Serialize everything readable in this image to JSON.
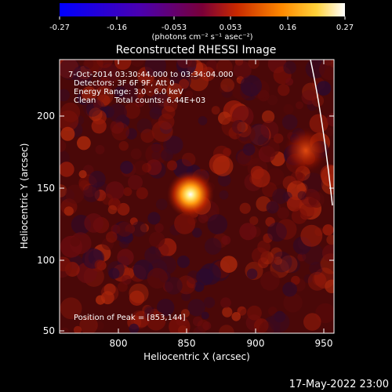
{
  "colorbar": {
    "tick_labels": [
      "-0.27",
      "-0.16",
      "-0.053",
      "0.053",
      "0.16",
      "0.27"
    ],
    "units": "(photons cm⁻² s⁻¹ asec⁻²)"
  },
  "title": "Reconstructed RHESSI Image",
  "info": {
    "time_range": "7-Oct-2014 03:30:44.000 to 03:34:04.000",
    "detectors": "Detectors: 3F 6F 9F, Att 0",
    "energy": "Energy Range: 3.0 - 6.0 keV",
    "algorithm": "Clean",
    "counts": "Total counts: 6.44E+03"
  },
  "peak": "Position of Peak = [853,144]",
  "xaxis": {
    "label": "Heliocentric X (arcsec)",
    "ticks": [
      "800",
      "850",
      "900",
      "950"
    ]
  },
  "yaxis": {
    "label": "Heliocentric Y (arcsec)",
    "ticks": [
      "50",
      "100",
      "150",
      "200"
    ]
  },
  "timestamp": "17-May-2022 23:00"
}
